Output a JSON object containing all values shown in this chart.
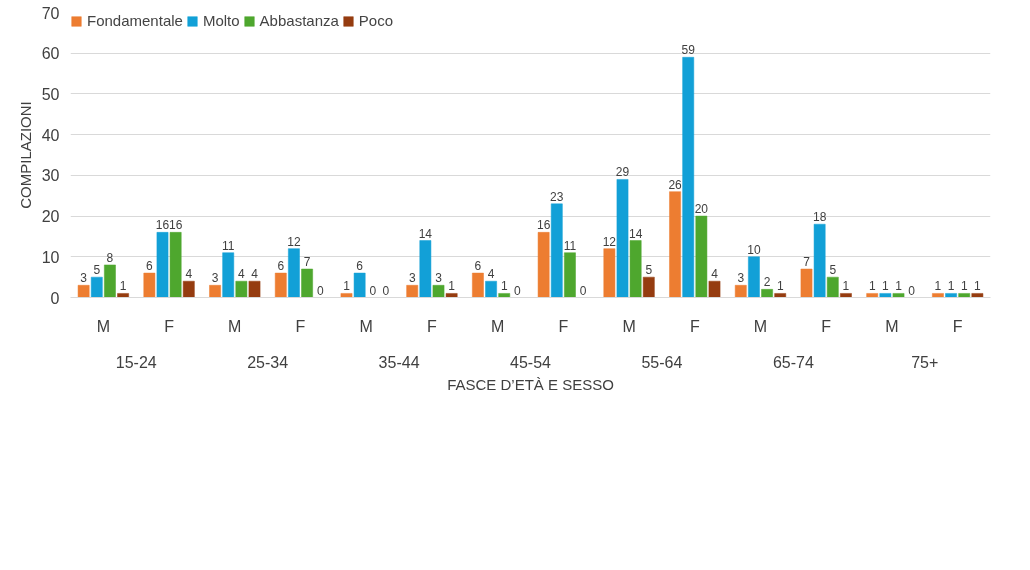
{
  "chart_data": {
    "type": "bar",
    "xlabel": "FASCE D’ETÀ E SESSO",
    "ylabel": "COMPILAZIONI",
    "categories": [
      "M",
      "F",
      "M",
      "F",
      "M",
      "F",
      "M",
      "F",
      "M",
      "F",
      "M",
      "F",
      "M",
      "F"
    ],
    "annotations": [
      "15-24",
      "25-34",
      "35-44",
      "45-54",
      "55-64",
      "65-74",
      "75+"
    ],
    "series": [
      {
        "name": "Fondamentale",
        "color": "#ed7d31",
        "values": [
          3,
          6,
          3,
          6,
          1,
          3,
          6,
          16,
          12,
          26,
          3,
          7,
          1,
          1
        ]
      },
      {
        "name": "Molto",
        "color": "#12a0d7",
        "values": [
          5,
          16,
          11,
          12,
          6,
          14,
          4,
          23,
          29,
          59,
          10,
          18,
          1,
          1
        ]
      },
      {
        "name": "Abbastanza",
        "color": "#4ea72e",
        "values": [
          8,
          16,
          4,
          7,
          0,
          3,
          1,
          11,
          14,
          20,
          2,
          5,
          1,
          1
        ]
      },
      {
        "name": "Poco",
        "color": "#953c10",
        "values": [
          1,
          4,
          4,
          0,
          0,
          1,
          0,
          0,
          5,
          4,
          1,
          1,
          0,
          1
        ]
      }
    ],
    "ylim": [
      0,
      70
    ],
    "yticks": [
      0,
      10,
      20,
      30,
      40,
      50,
      60,
      70
    ],
    "grid": "y",
    "legend": "top left",
    "data_labels": true
  }
}
